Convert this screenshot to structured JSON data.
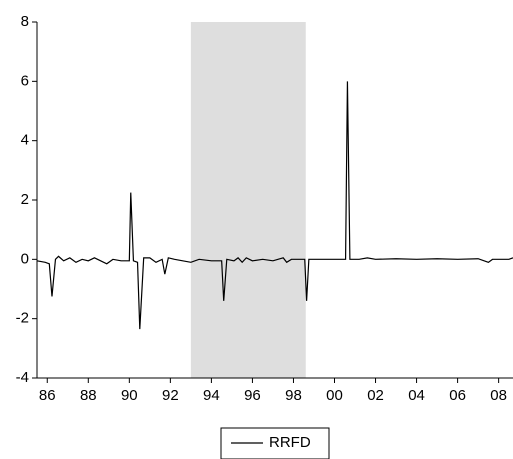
{
  "chart_data": {
    "type": "line",
    "x": [
      1985.5,
      1985.9,
      1986.1,
      1986.23,
      1986.4,
      1986.55,
      1986.8,
      1987.1,
      1987.4,
      1987.7,
      1988.0,
      1988.3,
      1988.6,
      1988.9,
      1989.2,
      1989.6,
      1990.0,
      1990.07,
      1990.2,
      1990.4,
      1990.51,
      1990.7,
      1991.0,
      1991.3,
      1991.6,
      1991.73,
      1991.9,
      1992.2,
      1992.6,
      1993.0,
      1993.4,
      1994.0,
      1994.5,
      1994.6,
      1994.75,
      1995.1,
      1995.3,
      1995.5,
      1995.7,
      1996.0,
      1996.5,
      1997.0,
      1997.5,
      1997.67,
      1997.9,
      1998.55,
      1998.64,
      1998.75,
      2000.54,
      2000.63,
      2000.75,
      2001.2,
      2001.6,
      2002.0,
      2003.0,
      2004.0,
      2005.0,
      2006.0,
      2007.0,
      2007.5,
      2007.7,
      2008.5,
      2008.7
    ],
    "series": [
      {
        "name": "RRFD",
        "color": "#000000",
        "values": [
          -0.05,
          -0.1,
          -0.15,
          -1.25,
          0.0,
          0.1,
          -0.05,
          0.05,
          -0.1,
          0.0,
          -0.05,
          0.05,
          -0.05,
          -0.15,
          0.0,
          -0.05,
          -0.05,
          2.25,
          -0.05,
          -0.1,
          -2.35,
          0.05,
          0.05,
          -0.1,
          0.0,
          -0.5,
          0.05,
          0.0,
          -0.05,
          -0.1,
          0.0,
          -0.05,
          -0.05,
          -1.4,
          0.0,
          -0.05,
          0.05,
          -0.1,
          0.05,
          -0.05,
          0.0,
          -0.05,
          0.05,
          -0.1,
          0.0,
          0.0,
          -1.4,
          0.0,
          0.0,
          6.0,
          0.0,
          0.0,
          0.05,
          0.0,
          0.02,
          0.0,
          0.02,
          0.0,
          0.02,
          -0.1,
          0.0,
          0.0,
          0.05
        ]
      }
    ],
    "xlim": [
      1985.5,
      2008.7
    ],
    "xticks": [
      {
        "value": 1986,
        "label": "86"
      },
      {
        "value": 1988,
        "label": "88"
      },
      {
        "value": 1990,
        "label": "90"
      },
      {
        "value": 1992,
        "label": "92"
      },
      {
        "value": 1994,
        "label": "94"
      },
      {
        "value": 1996,
        "label": "96"
      },
      {
        "value": 1998,
        "label": "98"
      },
      {
        "value": 2000,
        "label": "00"
      },
      {
        "value": 2002,
        "label": "02"
      },
      {
        "value": 2004,
        "label": "04"
      },
      {
        "value": 2006,
        "label": "06"
      },
      {
        "value": 2008,
        "label": "08"
      }
    ],
    "ylim": [
      -4,
      8
    ],
    "yticks": [
      -4,
      -2,
      0,
      2,
      4,
      6,
      8
    ],
    "shaded_ranges": [
      [
        1993.0,
        1998.6
      ]
    ],
    "shade_color": "#dedede",
    "legend": "bottom"
  }
}
